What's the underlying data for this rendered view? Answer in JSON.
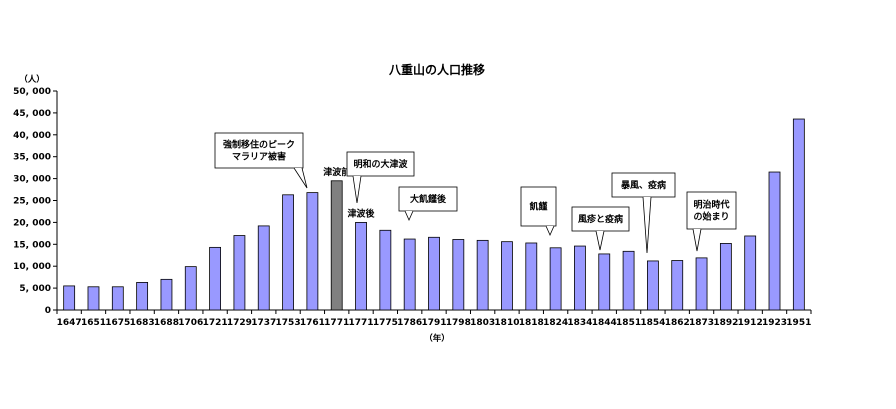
{
  "chart_data": {
    "type": "bar",
    "title": "八重山の人口推移",
    "ylabel": "（人）",
    "xlabel": "（年）",
    "ylim": [
      0,
      50000
    ],
    "yticks": [
      0,
      5000,
      10000,
      15000,
      20000,
      25000,
      30000,
      35000,
      40000,
      45000,
      50000
    ],
    "ytick_labels": [
      "0",
      "5, 000",
      "10, 000",
      "15, 000",
      "20, 000",
      "25, 000",
      "30, 000",
      "35, 000",
      "40, 000",
      "45, 000",
      "50, 000"
    ],
    "grid": false,
    "legend": "none",
    "categories": [
      "1647",
      "1651",
      "1675",
      "1683",
      "1688",
      "1706",
      "1721",
      "1729",
      "1737",
      "1753",
      "1761",
      "1771",
      "1771",
      "1775",
      "1786",
      "1791",
      "1798",
      "1803",
      "1810",
      "1818",
      "1824",
      "1834",
      "1844",
      "1851",
      "1854",
      "1862",
      "1873",
      "1892",
      "1912",
      "1923",
      "1951"
    ],
    "values": [
      5500,
      5300,
      5300,
      6300,
      7000,
      9900,
      14300,
      17000,
      19200,
      26300,
      26800,
      29500,
      20000,
      18200,
      16200,
      16600,
      16100,
      15900,
      15600,
      15300,
      14200,
      14600,
      12800,
      13400,
      11200,
      11300,
      11900,
      15200,
      16900,
      31500,
      43600
    ],
    "highlight_index": 11,
    "colors": {
      "bar": "#9999ff",
      "highlight": "#808080",
      "bar_stroke": "#000000"
    },
    "bar_labels": [
      {
        "index": 11,
        "text": "津波前"
      },
      {
        "index": 12,
        "text": "津波後"
      }
    ],
    "callouts": [
      {
        "index": 10,
        "lines": [
          "強制移住のピーク",
          "マラリア被害"
        ]
      },
      {
        "index": 12,
        "lines": [
          "明和の大津波"
        ]
      },
      {
        "index": 14,
        "lines": [
          "大飢饉後"
        ]
      },
      {
        "index": 20,
        "lines": [
          "飢饉"
        ]
      },
      {
        "index": 22,
        "lines": [
          "風疹と疫病"
        ]
      },
      {
        "index": 24,
        "lines": [
          "暴風、疫病"
        ]
      },
      {
        "index": 26,
        "lines": [
          "明治時代",
          "の始まり"
        ]
      }
    ]
  }
}
